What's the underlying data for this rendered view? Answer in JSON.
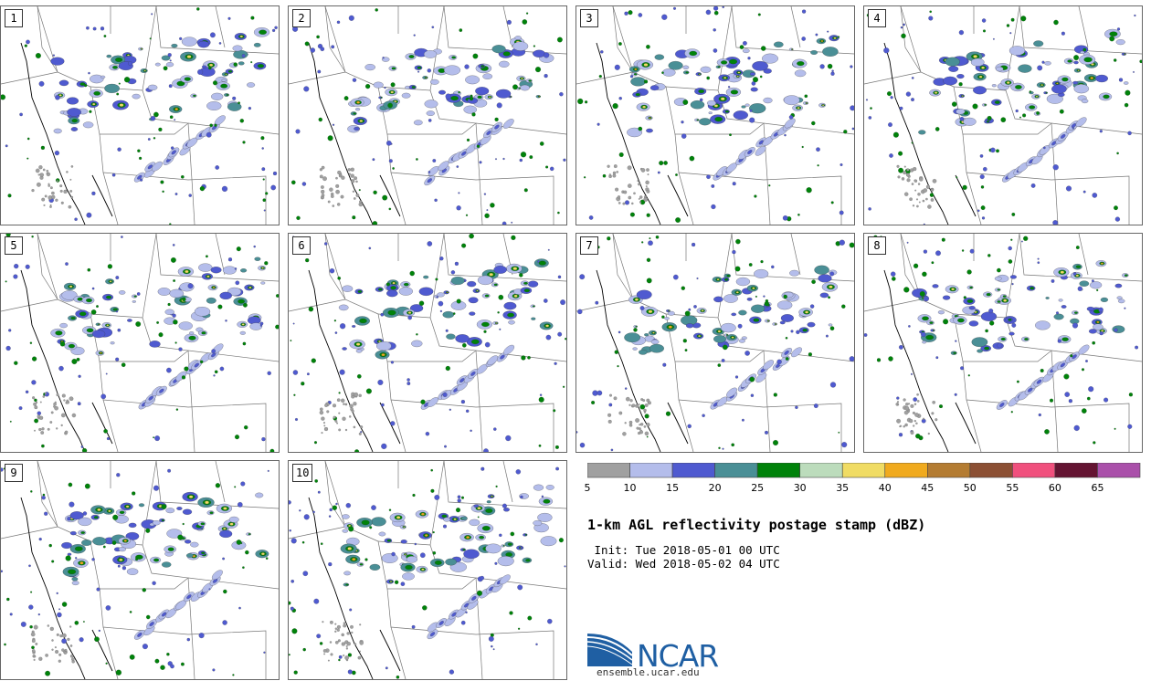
{
  "panels": [
    {
      "label": "1"
    },
    {
      "label": "2"
    },
    {
      "label": "3"
    },
    {
      "label": "4"
    },
    {
      "label": "5"
    },
    {
      "label": "6"
    },
    {
      "label": "7"
    },
    {
      "label": "8"
    },
    {
      "label": "9"
    },
    {
      "label": "10"
    }
  ],
  "colorbar": {
    "colors": [
      "#a0a0a0",
      "#b4bdeb",
      "#4f5ad0",
      "#4a8f96",
      "#00820a",
      "#bcdcbc",
      "#f0dc64",
      "#f0aa1e",
      "#b47c32",
      "#8c5034",
      "#f0507d",
      "#641432",
      "#aa50aa"
    ],
    "ticks": [
      "5",
      "10",
      "15",
      "20",
      "25",
      "30",
      "35",
      "40",
      "45",
      "50",
      "55",
      "60",
      "65"
    ]
  },
  "title": "1-km AGL reflectivity postage stamp (dBZ)",
  "init": " Init: Tue 2018-05-01 00 UTC",
  "valid": "Valid: Wed 2018-05-02 04 UTC",
  "logo": {
    "text": "NCAR",
    "site": "ensemble.ucar.edu",
    "color": "#1f5fa3"
  }
}
